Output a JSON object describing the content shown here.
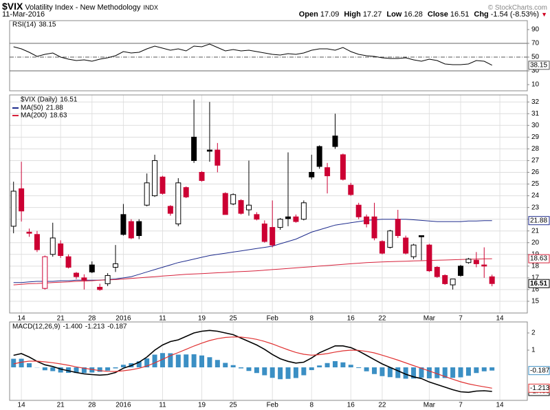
{
  "header": {
    "symbol": "$VIX",
    "name": "Volatility Index - New Methodology",
    "exchange": "INDX",
    "date": "11-Mar-2016",
    "credit": "© StockCharts.com",
    "quote": [
      {
        "label": "Open",
        "value": "17.09"
      },
      {
        "label": "High",
        "value": "17.27"
      },
      {
        "label": "Low",
        "value": "16.28"
      },
      {
        "label": "Close",
        "value": "16.51"
      },
      {
        "label": "Chg",
        "value": "-1.54 (-8.53%)"
      }
    ]
  },
  "chart_data": [
    {
      "type": "line",
      "title": "RSI(14)",
      "last_label": "38.15",
      "color": "#000000",
      "values": [
        65,
        62,
        57,
        51,
        54,
        56,
        50,
        47,
        45,
        46,
        44,
        47,
        49,
        52,
        58,
        56,
        57,
        62,
        66,
        63,
        60,
        62,
        59,
        66,
        65,
        69,
        64,
        59,
        61,
        59,
        60,
        58,
        56,
        54,
        53,
        55,
        54,
        56,
        60,
        62,
        62,
        60,
        64,
        58,
        54,
        52,
        51,
        49,
        48,
        48,
        49,
        46,
        44,
        47,
        45,
        40,
        39,
        39,
        40,
        45,
        44,
        38.15
      ],
      "ylim": [
        1,
        103
      ],
      "yticks": [
        10,
        30,
        50,
        70,
        90
      ],
      "reference_lines": [
        70,
        50,
        30
      ]
    },
    {
      "type": "candlestick",
      "title": "$VIX (Daily)",
      "last_label": "16.51",
      "up_color": "#000000",
      "down_color": "#cc0033",
      "open": [
        21.4,
        24.6,
        20.9,
        20.7,
        16.1,
        19.0,
        19.9,
        18.8,
        17.4,
        17.0,
        18.1,
        16.2,
        16.5,
        17.9,
        22.4,
        21.8,
        21.8,
        23.2,
        24.0,
        25.6,
        23.1,
        21.6,
        24.7,
        29.0,
        26.0,
        27.9,
        27.9,
        24.2,
        23.3,
        23.6,
        22.8,
        22.4,
        21.6,
        21.3,
        21.3,
        22.2,
        22.2,
        22.0,
        26.0,
        28.2,
        26.4,
        29.1,
        27.5,
        24.9,
        23.2,
        22.2,
        22.2,
        20.1,
        19.6,
        22.0,
        20.4,
        18.8,
        20.6,
        19.8,
        17.9,
        17.2,
        16.4,
        18.0,
        18.3,
        18.5,
        18.1,
        17.09
      ],
      "high": [
        25.2,
        26.9,
        21.2,
        21.0,
        18.9,
        21.7,
        20.2,
        19.0,
        17.5,
        17.3,
        18.4,
        16.5,
        17.4,
        19.8,
        23.3,
        22.0,
        22.0,
        25.9,
        27.5,
        25.7,
        23.2,
        25.5,
        24.8,
        32.2,
        26.1,
        32.0,
        28.5,
        24.3,
        24.2,
        23.7,
        27.0,
        22.6,
        21.9,
        23.6,
        22.1,
        27.7,
        22.4,
        23.6,
        27.5,
        28.3,
        26.8,
        31.0,
        27.6,
        25.1,
        23.4,
        22.4,
        23.4,
        20.2,
        21.1,
        22.8,
        20.6,
        19.9,
        20.6,
        19.9,
        18.0,
        17.3,
        16.9,
        18.1,
        18.7,
        19.2,
        19.6,
        17.27
      ],
      "low": [
        20.8,
        21.8,
        20.5,
        19.2,
        16.0,
        18.8,
        18.7,
        17.8,
        16.9,
        16.0,
        17.4,
        15.9,
        16.3,
        17.5,
        20.6,
        20.3,
        20.3,
        23.1,
        23.9,
        24.1,
        22.3,
        21.4,
        23.8,
        26.8,
        25.2,
        26.9,
        26.0,
        22.4,
        23.2,
        22.4,
        22.3,
        21.9,
        20.0,
        19.6,
        21.1,
        21.4,
        21.7,
        21.9,
        25.4,
        26.3,
        24.2,
        28.0,
        25.3,
        24.0,
        22.0,
        21.3,
        20.2,
        19.0,
        19.5,
        20.4,
        19.0,
        18.6,
        18.5,
        17.5,
        17.0,
        16.4,
        16.0,
        17.1,
        18.2,
        17.9,
        17.0,
        16.28
      ],
      "close": [
        24.39,
        22.7,
        20.8,
        19.4,
        18.8,
        20.4,
        18.9,
        17.9,
        17.1,
        16.8,
        17.5,
        16.0,
        17.2,
        18.2,
        20.7,
        20.4,
        20.6,
        25.1,
        27.0,
        24.2,
        22.5,
        25.1,
        23.9,
        27.0,
        25.3,
        27.8,
        26.6,
        22.4,
        24.1,
        22.5,
        23.2,
        22.0,
        20.1,
        19.8,
        22.0,
        22.05,
        21.8,
        23.4,
        25.6,
        26.5,
        25.7,
        28.2,
        25.4,
        24.1,
        22.2,
        21.6,
        20.4,
        19.1,
        21.0,
        20.6,
        19.1,
        19.8,
        20.5,
        17.6,
        17.1,
        16.5,
        16.9,
        17.2,
        18.6,
        18.2,
        18.0,
        16.51
      ],
      "series": [
        {
          "name": "MA(50)",
          "last_label": "21.88",
          "color": "#1c2a8c",
          "values": [
            16.6,
            16.6,
            16.65,
            16.7,
            16.7,
            16.7,
            16.75,
            16.75,
            16.8,
            16.8,
            16.8,
            16.8,
            16.85,
            16.9,
            17.0,
            17.1,
            17.3,
            17.5,
            17.7,
            17.9,
            18.1,
            18.3,
            18.45,
            18.6,
            18.75,
            18.9,
            19.0,
            19.1,
            19.2,
            19.3,
            19.4,
            19.5,
            19.6,
            19.7,
            19.9,
            20.1,
            20.3,
            20.6,
            20.9,
            21.1,
            21.3,
            21.5,
            21.6,
            21.7,
            21.8,
            21.9,
            21.95,
            22.0,
            22.0,
            22.0,
            22.0,
            21.95,
            21.9,
            21.85,
            21.8,
            21.8,
            21.8,
            21.8,
            21.85,
            21.85,
            21.88,
            21.88
          ]
        },
        {
          "name": "MA(200)",
          "last_label": "18.63",
          "color": "#d6203a",
          "values": [
            16.4,
            16.45,
            16.5,
            16.52,
            16.55,
            16.6,
            16.62,
            16.65,
            16.7,
            16.72,
            16.75,
            16.8,
            16.82,
            16.85,
            16.9,
            16.95,
            17.0,
            17.05,
            17.1,
            17.15,
            17.2,
            17.25,
            17.3,
            17.33,
            17.36,
            17.4,
            17.43,
            17.46,
            17.5,
            17.53,
            17.56,
            17.6,
            17.65,
            17.7,
            17.75,
            17.8,
            17.85,
            17.9,
            17.95,
            18.0,
            18.05,
            18.1,
            18.15,
            18.2,
            18.25,
            18.3,
            18.33,
            18.36,
            18.38,
            18.4,
            18.42,
            18.44,
            18.46,
            18.48,
            18.5,
            18.52,
            18.54,
            18.56,
            18.58,
            18.6,
            18.62,
            18.63
          ]
        }
      ],
      "ylim": [
        14,
        32.6
      ],
      "yticks": [
        15,
        16,
        17,
        18,
        19,
        20,
        21,
        22,
        23,
        24,
        25,
        26,
        27,
        28,
        29,
        30,
        31,
        32
      ],
      "grid": true,
      "xlim": [
        -0.5,
        65.5
      ],
      "xticks": [
        {
          "value": 1,
          "label": "14"
        },
        {
          "value": 6,
          "label": "21"
        },
        {
          "value": 10,
          "label": "28"
        },
        {
          "value": 14,
          "label": "2016"
        },
        {
          "value": 19,
          "label": "11"
        },
        {
          "value": 24,
          "label": "19"
        },
        {
          "value": 28,
          "label": "25"
        },
        {
          "value": 33,
          "label": "Feb"
        },
        {
          "value": 38,
          "label": "8"
        },
        {
          "value": 43,
          "label": "16"
        },
        {
          "value": 47,
          "label": "22"
        },
        {
          "value": 53,
          "label": "Mar"
        },
        {
          "value": 57,
          "label": "7"
        },
        {
          "value": 62,
          "label": "14"
        }
      ]
    },
    {
      "type": "macd",
      "ylim": [
        -1.92,
        2.64
      ],
      "yticks": [
        1,
        2
      ],
      "series": [
        {
          "name": "MACD(12,26,9)",
          "last_label": "-1.400",
          "color": "#000000",
          "style": "line",
          "values": [
            0.7,
            0.8,
            0.6,
            0.35,
            0.15,
            0.05,
            -0.1,
            -0.2,
            -0.3,
            -0.38,
            -0.42,
            -0.45,
            -0.42,
            -0.3,
            -0.05,
            0.1,
            0.3,
            0.6,
            1.0,
            1.3,
            1.5,
            1.6,
            1.8,
            2.0,
            2.1,
            2.15,
            2.1,
            2.0,
            1.9,
            1.7,
            1.5,
            1.3,
            1.05,
            0.75,
            0.5,
            0.35,
            0.25,
            0.3,
            0.55,
            0.85,
            1.05,
            1.25,
            1.25,
            1.15,
            0.95,
            0.7,
            0.45,
            0.2,
            0.0,
            -0.2,
            -0.4,
            -0.55,
            -0.65,
            -0.85,
            -1.0,
            -1.15,
            -1.3,
            -1.42,
            -1.45,
            -1.38,
            -1.36,
            -1.4
          ]
        },
        {
          "last_label": "-1.213",
          "color": "#e03030",
          "style": "line",
          "values": [
            0.2,
            0.3,
            0.36,
            0.36,
            0.32,
            0.27,
            0.2,
            0.12,
            0.03,
            -0.05,
            -0.12,
            -0.19,
            -0.23,
            -0.24,
            -0.2,
            -0.14,
            -0.05,
            0.08,
            0.26,
            0.47,
            0.68,
            0.86,
            1.05,
            1.24,
            1.41,
            1.56,
            1.67,
            1.74,
            1.77,
            1.76,
            1.71,
            1.63,
            1.51,
            1.36,
            1.19,
            1.02,
            0.87,
            0.76,
            0.71,
            0.74,
            0.8,
            0.89,
            0.96,
            1.0,
            0.99,
            0.93,
            0.84,
            0.71,
            0.57,
            0.42,
            0.26,
            0.1,
            -0.05,
            -0.21,
            -0.37,
            -0.53,
            -0.69,
            -0.84,
            -0.96,
            -1.05,
            -1.13,
            -1.213
          ]
        },
        {
          "last_label": "-0.187",
          "color": "#3b8fc4",
          "style": "histogram",
          "values": [
            0.5,
            0.5,
            0.24,
            -0.01,
            -0.17,
            -0.22,
            -0.3,
            -0.32,
            -0.33,
            -0.33,
            -0.3,
            -0.26,
            -0.19,
            -0.06,
            0.15,
            0.24,
            0.35,
            0.52,
            0.74,
            0.83,
            0.82,
            0.74,
            0.75,
            0.76,
            0.69,
            0.59,
            0.43,
            0.26,
            0.13,
            -0.06,
            -0.21,
            -0.33,
            -0.46,
            -0.61,
            -0.69,
            -0.67,
            -0.62,
            -0.46,
            -0.16,
            0.11,
            0.25,
            0.36,
            0.29,
            0.15,
            -0.04,
            -0.23,
            -0.39,
            -0.51,
            -0.57,
            -0.62,
            -0.66,
            -0.65,
            -0.6,
            -0.64,
            -0.63,
            -0.62,
            -0.61,
            -0.58,
            -0.49,
            -0.33,
            -0.23,
            -0.187
          ]
        }
      ]
    }
  ]
}
